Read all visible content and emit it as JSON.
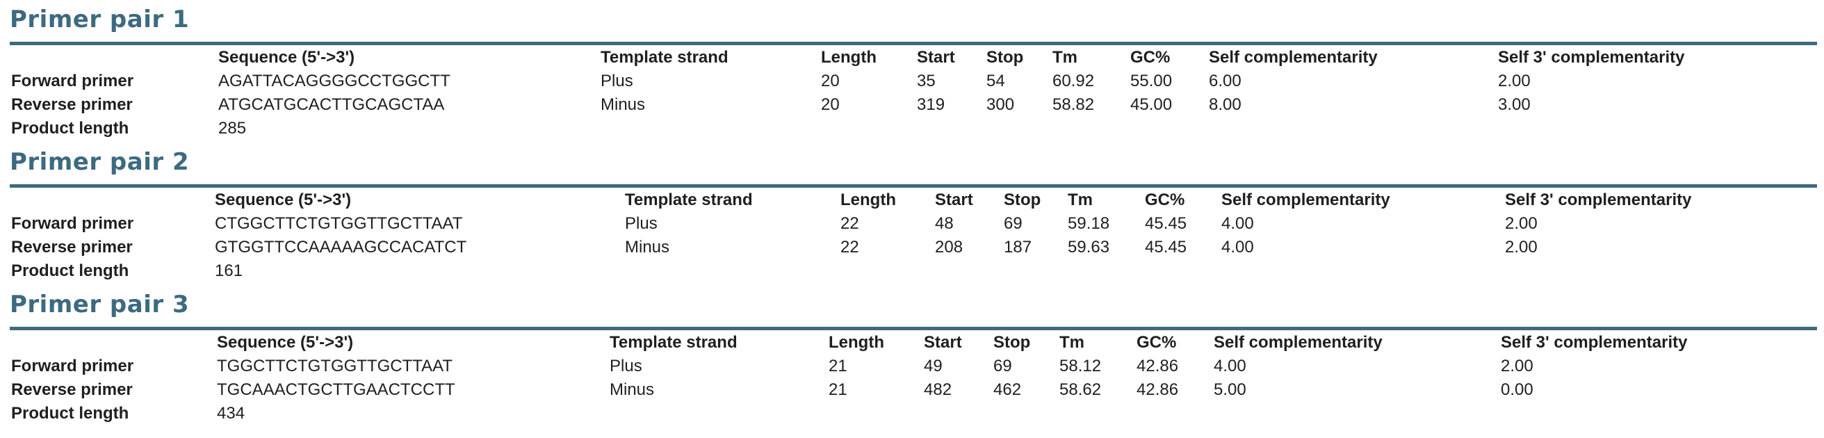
{
  "headers": {
    "sequence": "Sequence (5'->3')",
    "template_strand": "Template strand",
    "length": "Length",
    "start": "Start",
    "stop": "Stop",
    "tm": "Tm",
    "gc": "GC%",
    "self_comp": "Self complementarity",
    "self3_comp": "Self 3' complementarity"
  },
  "row_labels": {
    "forward": "Forward primer",
    "reverse": "Reverse primer",
    "product": "Product length"
  },
  "pairs": [
    {
      "title": "Primer pair 1",
      "forward": {
        "sequence": "AGATTACAGGGGCCTGGCTT",
        "strand": "Plus",
        "length": "20",
        "start": "35",
        "stop": "54",
        "tm": "60.92",
        "gc": "55.00",
        "self_comp": "6.00",
        "self3_comp": "2.00"
      },
      "reverse": {
        "sequence": "ATGCATGCACTTGCAGCTAA",
        "strand": "Minus",
        "length": "20",
        "start": "319",
        "stop": "300",
        "tm": "58.82",
        "gc": "45.00",
        "self_comp": "8.00",
        "self3_comp": "3.00"
      },
      "product_length": "285"
    },
    {
      "title": "Primer pair 2",
      "forward": {
        "sequence": "CTGGCTTCTGTGGTTGCTTAAT",
        "strand": "Plus",
        "length": "22",
        "start": "48",
        "stop": "69",
        "tm": "59.18",
        "gc": "45.45",
        "self_comp": "4.00",
        "self3_comp": "2.00"
      },
      "reverse": {
        "sequence": "GTGGTTCCAAAAAGCCACATCT",
        "strand": "Minus",
        "length": "22",
        "start": "208",
        "stop": "187",
        "tm": "59.63",
        "gc": "45.45",
        "self_comp": "4.00",
        "self3_comp": "2.00"
      },
      "product_length": "161"
    },
    {
      "title": "Primer pair 3",
      "forward": {
        "sequence": "TGGCTTCTGTGGTTGCTTAAT",
        "strand": "Plus",
        "length": "21",
        "start": "49",
        "stop": "69",
        "tm": "58.12",
        "gc": "42.86",
        "self_comp": "4.00",
        "self3_comp": "2.00"
      },
      "reverse": {
        "sequence": "TGCAAACTGCTTGAACTCCTT",
        "strand": "Minus",
        "length": "21",
        "start": "482",
        "stop": "462",
        "tm": "58.62",
        "gc": "42.86",
        "self_comp": "5.00",
        "self3_comp": "0.00"
      },
      "product_length": "434"
    }
  ]
}
